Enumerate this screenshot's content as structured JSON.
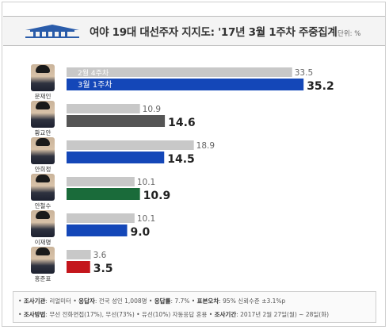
{
  "header": {
    "title": "여야 19대 대선주자 지지도: '17년 3월 1주차 주중집계",
    "unit": "단위: %"
  },
  "colors": {
    "prev_bar": "#c8c8c8",
    "current_bars": [
      "#1447b8",
      "#555555",
      "#1447b8",
      "#1a6b3a",
      "#1447b8",
      "#c4161c"
    ]
  },
  "chart_data": {
    "type": "bar",
    "orientation": "horizontal",
    "categories": [
      "문재인",
      "황교안",
      "안희정",
      "안철수",
      "이재명",
      "홍준표"
    ],
    "series": [
      {
        "name": "2월 4주차",
        "values": [
          33.5,
          10.9,
          18.9,
          10.1,
          10.1,
          3.6
        ]
      },
      {
        "name": "3월 1주차",
        "values": [
          35.2,
          14.6,
          14.5,
          10.9,
          9.0,
          3.5
        ]
      }
    ],
    "xlim": [
      0,
      36
    ]
  },
  "footer": {
    "line1": [
      {
        "label": "조사기관",
        "value": "리얼미터"
      },
      {
        "label": "응답자",
        "value": "전국 성인 1,008명"
      },
      {
        "label": "응답률",
        "value": "7.7%"
      },
      {
        "label": "표본오차",
        "value": "95% 신뢰수준 ±3.1%p"
      }
    ],
    "line2": [
      {
        "label": "조사방법",
        "value": "무선 전화면접(17%), 무선(73%) • 유선(10%) 자동응답 혼용"
      },
      {
        "label": "조사기간",
        "value": "2017년 2월 27일(월) ~ 28일(화)"
      }
    ]
  }
}
